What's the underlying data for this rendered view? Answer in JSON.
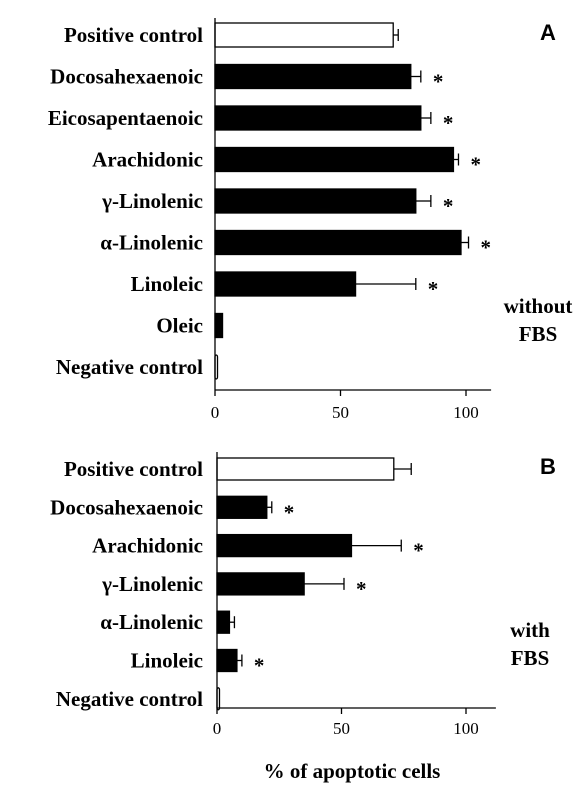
{
  "chart_data": [
    {
      "type": "bar",
      "orientation": "horizontal",
      "panel_label": "A",
      "condition_label": [
        "without",
        "FBS"
      ],
      "categories": [
        "Positive control",
        "Docosahexaenoic",
        "Eicosapentaenoic",
        "Arachidonic",
        "γ-Linolenic",
        "α-Linolenic",
        "Linoleic",
        "Oleic",
        "Negative control"
      ],
      "values": [
        71,
        78,
        82,
        95,
        80,
        98,
        56,
        3,
        1
      ],
      "errors": [
        2,
        4,
        4,
        2,
        6,
        3,
        24,
        0,
        0
      ],
      "significant": [
        false,
        true,
        true,
        true,
        true,
        true,
        true,
        false,
        false
      ],
      "fill": [
        "white",
        "black",
        "black",
        "black",
        "black",
        "black",
        "black",
        "black",
        "white"
      ],
      "xlim": [
        0,
        110
      ],
      "xticks": [
        "0",
        "50",
        "100"
      ],
      "grid": false
    },
    {
      "type": "bar",
      "orientation": "horizontal",
      "panel_label": "B",
      "condition_label": [
        "with",
        "FBS"
      ],
      "categories": [
        "Positive control",
        "Docosahexaenoic",
        "Arachidonic",
        "γ-Linolenic",
        "α-Linolenic",
        "Linoleic",
        "Negative control"
      ],
      "values": [
        71,
        20,
        54,
        35,
        5,
        8,
        1
      ],
      "errors": [
        7,
        2,
        20,
        16,
        2,
        2,
        0
      ],
      "significant": [
        false,
        true,
        true,
        true,
        false,
        true,
        false
      ],
      "fill": [
        "white",
        "black",
        "black",
        "black",
        "black",
        "black",
        "white"
      ],
      "xlim": [
        0,
        112
      ],
      "xticks": [
        "0",
        "50",
        "100"
      ],
      "xlabel": "% of apoptotic  cells",
      "grid": false
    }
  ],
  "colors": {
    "bar_dark": "#000000",
    "bar_light": "#ffffff",
    "axis": "#000000"
  }
}
